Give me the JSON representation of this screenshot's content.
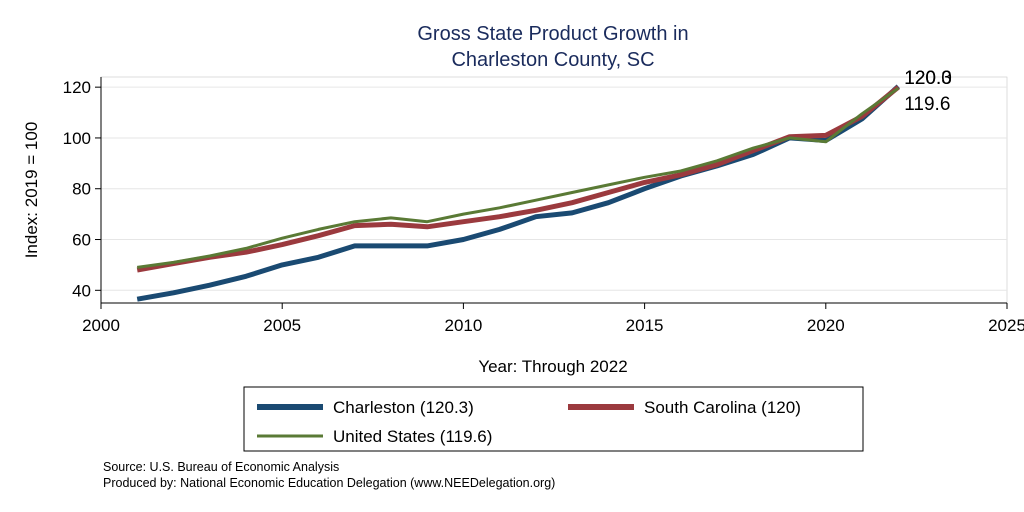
{
  "chart_data": {
    "type": "line",
    "title_lines": [
      "Gross State Product Growth in",
      "Charleston County, SC"
    ],
    "xlabel": "Year: Through 2022",
    "ylabel": "Index: 2019 = 100",
    "xlim": [
      2000,
      2025
    ],
    "ylim": [
      35,
      124
    ],
    "xticks": [
      2000,
      2005,
      2010,
      2015,
      2020,
      2025
    ],
    "yticks": [
      40,
      60,
      80,
      100,
      120
    ],
    "grid": true,
    "legend_position": "bottom",
    "x": [
      2001,
      2002,
      2003,
      2004,
      2005,
      2006,
      2007,
      2008,
      2009,
      2010,
      2011,
      2012,
      2013,
      2014,
      2015,
      2016,
      2017,
      2018,
      2019,
      2020,
      2021,
      2022
    ],
    "series": [
      {
        "name": "Charleston",
        "legend_label": "Charleston  (120.3)",
        "end_label": "120.3",
        "color": "#1a4a72",
        "stroke": "thick",
        "values": [
          36.5,
          39,
          42,
          45.5,
          50,
          53,
          57.5,
          57.5,
          57.5,
          60,
          64,
          69,
          70.5,
          74.5,
          80,
          85,
          89,
          93.5,
          100,
          99,
          107.5,
          120.3
        ]
      },
      {
        "name": "South Carolina",
        "legend_label": "South Carolina (120)",
        "end_label": "120.0",
        "color": "#9b3a3e",
        "stroke": "thick",
        "values": [
          48,
          50.5,
          53,
          55,
          58,
          61.5,
          65.5,
          66,
          65,
          67,
          69,
          71.5,
          74.5,
          78.5,
          82.5,
          85.5,
          89.5,
          95,
          100.5,
          101,
          108.5,
          120
        ]
      },
      {
        "name": "United States",
        "legend_label": "United States (119.6)",
        "end_label": "119.6",
        "color": "#5a7a35",
        "stroke": "thin",
        "values": [
          49,
          51,
          53.5,
          56.5,
          60.5,
          64,
          67,
          68.5,
          67,
          70,
          72.5,
          75.5,
          78.5,
          81.5,
          84.5,
          87,
          91,
          96,
          100,
          98.5,
          109.5,
          119.6
        ]
      }
    ]
  },
  "notes": {
    "source": "Source: U.S. Bureau of Economic Analysis",
    "produced_by": "Produced by: National Economic Education Delegation (www.NEEDelegation.org)"
  }
}
